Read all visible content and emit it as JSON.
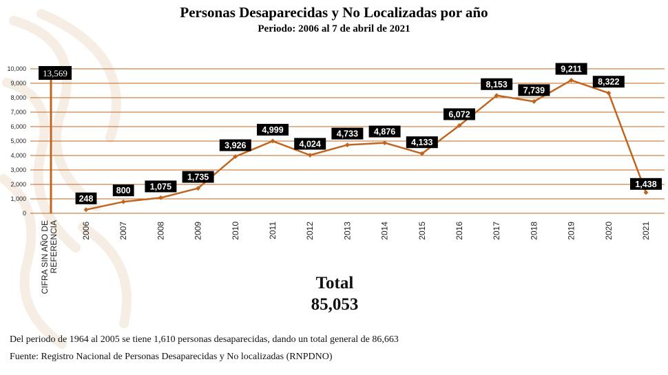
{
  "chart_data": {
    "type": "line",
    "title": "Personas Desaparecidas y No Localizadas por año",
    "subtitle": "Periodo: 2006 al 7 de abril de 2021",
    "categories": [
      "2006",
      "2007",
      "2008",
      "2009",
      "2010",
      "2011",
      "2012",
      "2013",
      "2014",
      "2015",
      "2016",
      "2017",
      "2018",
      "2019",
      "2020",
      "2021"
    ],
    "values": [
      248,
      800,
      1075,
      1735,
      3926,
      4999,
      4024,
      4733,
      4876,
      4133,
      6072,
      8153,
      7739,
      9211,
      8322,
      1438
    ],
    "data_labels": [
      "248",
      "800",
      "1,075",
      "1,735",
      "3,926",
      "4,999",
      "4,024",
      "4,733",
      "4,876",
      "4,133",
      "6,072",
      "8,153",
      "7,739",
      "9,211",
      "8,322",
      "1,438"
    ],
    "y_ticks": [
      0,
      1000,
      2000,
      3000,
      4000,
      5000,
      6000,
      7000,
      8000,
      9000,
      10000
    ],
    "y_tick_labels": [
      "0",
      "1,000",
      "2,000",
      "3,000",
      "4,000",
      "5,000",
      "6,000",
      "7,000",
      "8,000",
      "9,000",
      "10,000"
    ],
    "ylim": [
      0,
      10000
    ],
    "no_year": {
      "category_label_line1": "CIFRA SIN AÑO DE",
      "category_label_line2": "REFERENCIA",
      "value": 13569,
      "value_label": "13,569"
    },
    "grid": true,
    "series_color": "#c0651f",
    "grid_color": "#c0651f"
  },
  "total": {
    "label": "Total",
    "value": "85,053"
  },
  "footnote": "Del periodo de 1964 al 2005 se tiene 1,610 personas desaparecidas, dando un total general de 86,663",
  "source": "Fuente: Registro Nacional de Personas Desaparecidas y No localizadas (RNPDNO)"
}
